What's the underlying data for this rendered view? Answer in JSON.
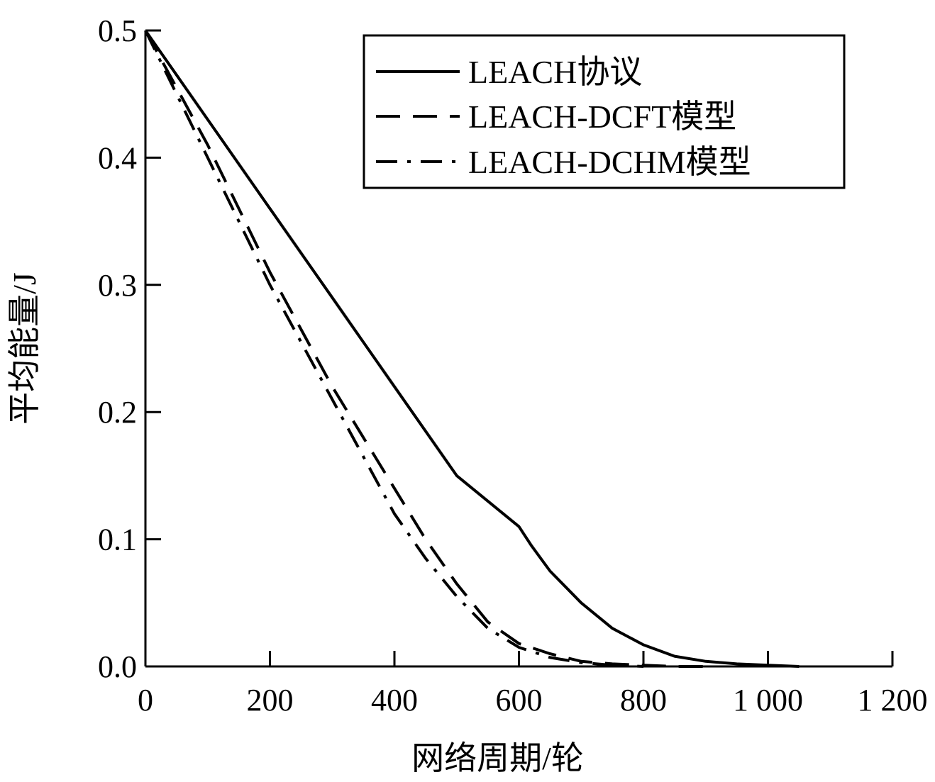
{
  "chart_data": {
    "type": "line",
    "title": "",
    "xlabel": "网络周期/轮",
    "ylabel": "平均能量/J",
    "xlim": [
      0,
      1200
    ],
    "ylim": [
      0,
      0.5
    ],
    "x_ticks": [
      0,
      200,
      400,
      600,
      800,
      1000,
      1200
    ],
    "x_tick_labels": [
      "0",
      "200",
      "400",
      "600",
      "800",
      "1 000",
      "1 200"
    ],
    "y_ticks": [
      0,
      0.1,
      0.2,
      0.3,
      0.4,
      0.5
    ],
    "y_tick_labels": [
      "0.0",
      "0.1",
      "0.2",
      "0.3",
      "0.4",
      "0.5"
    ],
    "grid": false,
    "legend_position": "top-right",
    "series": [
      {
        "name": "LEACH协议",
        "style": "solid",
        "x": [
          0,
          100,
          200,
          300,
          400,
          500,
          600,
          620,
          650,
          700,
          750,
          800,
          850,
          900,
          950,
          1000,
          1050
        ],
        "y": [
          0.5,
          0.43,
          0.36,
          0.29,
          0.22,
          0.15,
          0.11,
          0.095,
          0.075,
          0.05,
          0.03,
          0.017,
          0.008,
          0.004,
          0.002,
          0.001,
          0
        ]
      },
      {
        "name": "LEACH-DCFT模型",
        "style": "dashed",
        "x": [
          0,
          100,
          200,
          300,
          400,
          450,
          500,
          550,
          600,
          650,
          700,
          750,
          800,
          850,
          900
        ],
        "y": [
          0.5,
          0.41,
          0.31,
          0.22,
          0.14,
          0.1,
          0.065,
          0.035,
          0.018,
          0.01,
          0.004,
          0.002,
          0.001,
          0,
          0
        ]
      },
      {
        "name": "LEACH-DCHM模型",
        "style": "dash-dot",
        "x": [
          0,
          100,
          200,
          300,
          400,
          450,
          500,
          550,
          600,
          650,
          700,
          750,
          800
        ],
        "y": [
          0.5,
          0.4,
          0.3,
          0.21,
          0.12,
          0.085,
          0.055,
          0.03,
          0.015,
          0.007,
          0.003,
          0.001,
          0
        ]
      }
    ]
  }
}
